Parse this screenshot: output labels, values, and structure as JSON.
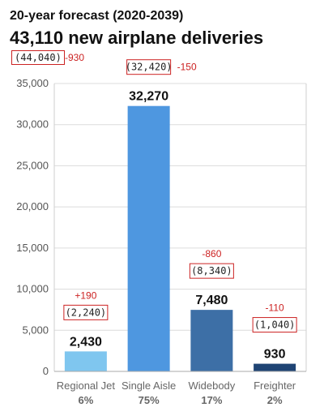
{
  "chart_data": {
    "type": "bar",
    "title": "20-year forecast (2020-2039)",
    "subtitle": "43,110 new airplane deliveries",
    "total_prev": "(44,040)",
    "total_delta": "-930",
    "categories": [
      "Regional Jet",
      "Single Aisle",
      "Widebody",
      "Freighter"
    ],
    "shares": [
      "6%",
      "75%",
      "17%",
      "2%"
    ],
    "values": [
      2430,
      32270,
      7480,
      930
    ],
    "value_labels": [
      "2,430",
      "32,270",
      "7,480",
      "930"
    ],
    "previous_labels": [
      "(2,240)",
      "(32,420)",
      "(8,340)",
      "(1,040)"
    ],
    "deltas": [
      "+190",
      "-150",
      "-860",
      "-110"
    ],
    "colors": [
      "#7fc6ef",
      "#4e97e0",
      "#3d6fa6",
      "#1f4474"
    ],
    "ylim": [
      0,
      35000
    ],
    "yticks": [
      0,
      5000,
      10000,
      15000,
      20000,
      25000,
      30000,
      35000
    ],
    "ytick_labels": [
      "0",
      "5,000",
      "10,000",
      "15,000",
      "20,000",
      "25,000",
      "30,000",
      "35,000"
    ],
    "grid": true
  }
}
